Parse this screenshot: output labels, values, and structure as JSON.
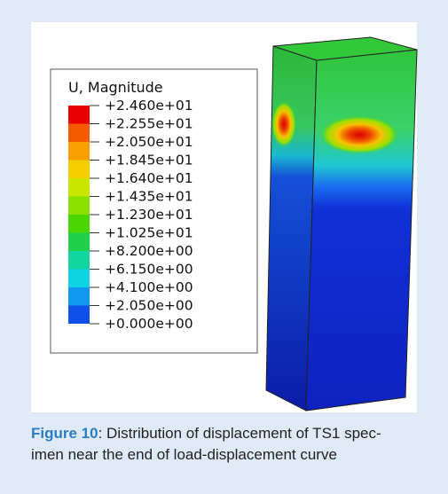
{
  "figure": {
    "legend": {
      "title": "U, Magnitude",
      "labels": [
        "+2.460e+01",
        "+2.255e+01",
        "+2.050e+01",
        "+1.845e+01",
        "+1.640e+01",
        "+1.435e+01",
        "+1.230e+01",
        "+1.025e+01",
        "+8.200e+00",
        "+6.150e+00",
        "+4.100e+00",
        "+2.050e+00",
        "+0.000e+00"
      ]
    }
  },
  "caption": {
    "label": "Figure 10",
    "lines": [
      ": Distribution of displacement of TS1 spec-",
      "imen near the end of load-displacement curve"
    ]
  }
}
